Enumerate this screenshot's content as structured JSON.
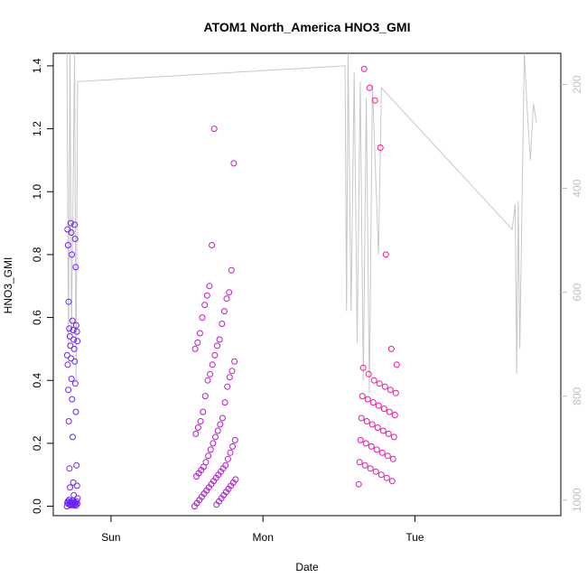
{
  "colors": {
    "profile_line": "#c8c8c8",
    "right_axis": "#c0c0c0",
    "text": "#000000",
    "series_start": "#6a22ff",
    "series_end": "#ff1493"
  },
  "chart_data": {
    "type": "scatter",
    "title": "ATOM1 North_America HNO3_GMI",
    "xlabel": "Date",
    "ylabel": "HNO3_GMI",
    "x_tick_labels": [
      "Sun",
      "Mon",
      "Tue"
    ],
    "x_ticks": [
      1.0,
      2.0,
      3.0
    ],
    "xlim": [
      0.62,
      3.96
    ],
    "ylim": [
      -0.03,
      1.44
    ],
    "y_ticks": [
      0.0,
      0.2,
      0.4,
      0.6,
      0.8,
      1.0,
      1.2,
      1.4
    ],
    "y_tick_labels": [
      "0.0",
      "0.2",
      "0.4",
      "0.6",
      "0.8",
      "1.0",
      "1.2",
      "1.4"
    ],
    "right_axis": {
      "label": "",
      "reversed": true,
      "lim": [
        1030,
        140
      ],
      "ticks": [
        200,
        400,
        600,
        800,
        1000
      ],
      "tick_labels": [
        "200",
        "400",
        "600",
        "800",
        "1000"
      ]
    },
    "clusters": [
      {
        "x_range": [
          0.71,
          0.78
        ],
        "values": [
          0.0,
          0.003,
          0.005,
          0.008,
          0.01,
          0.012,
          0.015,
          0.018,
          0.02,
          0.002,
          0.004,
          0.007,
          0.01,
          0.013,
          0.016,
          0.006,
          0.009,
          0.011,
          0.014,
          0.003,
          0.025,
          0.035,
          0.06,
          0.065,
          0.075,
          0.12,
          0.13,
          0.22,
          0.27,
          0.3,
          0.34,
          0.37,
          0.39,
          0.405,
          0.45,
          0.46,
          0.47,
          0.48,
          0.5,
          0.51,
          0.525,
          0.53,
          0.54,
          0.555,
          0.56,
          0.565,
          0.575,
          0.59,
          0.65,
          0.76,
          0.8,
          0.83,
          0.85,
          0.87,
          0.88,
          0.895,
          0.9
        ],
        "color_range": [
          0.0,
          0.05
        ]
      },
      {
        "x_range": [
          1.55,
          1.82
        ],
        "values": [
          0.0,
          0.005,
          0.01,
          0.015,
          0.02,
          0.025,
          0.03,
          0.035,
          0.04,
          0.045,
          0.05,
          0.055,
          0.06,
          0.065,
          0.07,
          0.075,
          0.08,
          0.085,
          0.09,
          0.095,
          0.1,
          0.105,
          0.11,
          0.115,
          0.12,
          0.125,
          0.13,
          0.14,
          0.15,
          0.16,
          0.17,
          0.18,
          0.19,
          0.2,
          0.21,
          0.22,
          0.23,
          0.24,
          0.25,
          0.26,
          0.27,
          0.28,
          0.3,
          0.33,
          0.35,
          0.38,
          0.4,
          0.41,
          0.42,
          0.43,
          0.45,
          0.46,
          0.48,
          0.5,
          0.51,
          0.52,
          0.53,
          0.55,
          0.58,
          0.6,
          0.62,
          0.64,
          0.66,
          0.67,
          0.68,
          0.7,
          0.75,
          0.83,
          1.09,
          1.2
        ],
        "color_range": [
          0.4,
          0.6
        ]
      },
      {
        "x_range": [
          2.63,
          2.88
        ],
        "values": [
          0.07,
          0.08,
          0.09,
          0.1,
          0.11,
          0.12,
          0.13,
          0.14,
          0.15,
          0.16,
          0.17,
          0.18,
          0.19,
          0.2,
          0.21,
          0.22,
          0.23,
          0.24,
          0.25,
          0.26,
          0.27,
          0.28,
          0.29,
          0.3,
          0.31,
          0.32,
          0.33,
          0.34,
          0.35,
          0.36,
          0.37,
          0.38,
          0.39,
          0.4,
          0.42,
          0.44,
          0.45,
          0.5,
          0.8,
          1.14,
          1.29,
          1.33,
          1.39
        ],
        "color_range": [
          0.8,
          1.0
        ]
      }
    ],
    "profile_line_points": [
      [
        0.71,
        1.44
      ],
      [
        0.72,
        0.5
      ],
      [
        0.73,
        1.44
      ],
      [
        0.74,
        0.55
      ],
      [
        0.76,
        1.44
      ],
      [
        0.77,
        0.4
      ],
      [
        0.78,
        1.35
      ],
      [
        2.54,
        1.4
      ],
      [
        2.55,
        0.62
      ],
      [
        2.56,
        1.44
      ],
      [
        2.58,
        0.62
      ],
      [
        2.6,
        1.38
      ],
      [
        2.62,
        0.52
      ],
      [
        2.64,
        1.35
      ],
      [
        2.66,
        0.4
      ],
      [
        2.68,
        1.3
      ],
      [
        2.7,
        0.36
      ],
      [
        2.72,
        1.34
      ],
      [
        2.76,
        0.8
      ],
      [
        2.78,
        1.33
      ],
      [
        3.64,
        0.88
      ],
      [
        3.66,
        0.96
      ],
      [
        3.67,
        0.42
      ],
      [
        3.68,
        0.97
      ],
      [
        3.69,
        0.5
      ],
      [
        3.72,
        1.44
      ],
      [
        3.74,
        1.25
      ],
      [
        3.76,
        1.1
      ],
      [
        3.78,
        1.28
      ],
      [
        3.8,
        1.22
      ]
    ]
  }
}
